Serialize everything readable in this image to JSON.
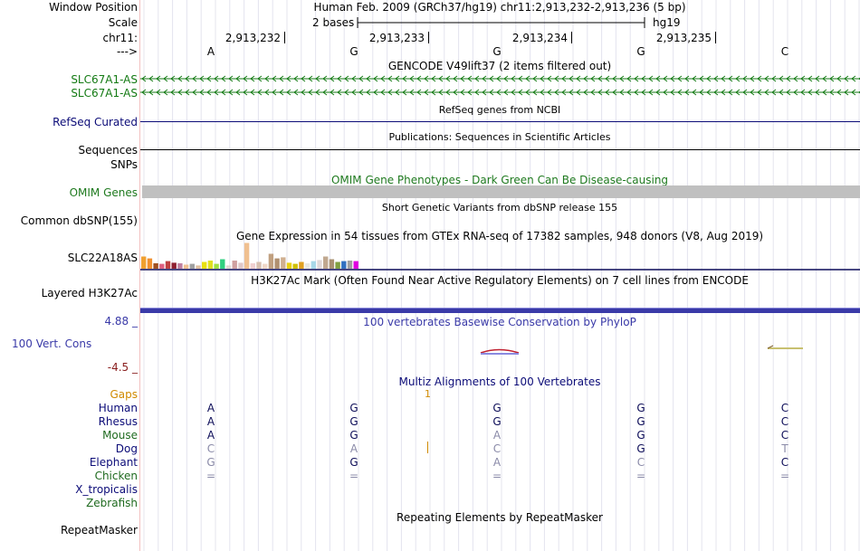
{
  "header": {
    "window_position_label": "Window Position",
    "window_position_text": "Human Feb. 2009 (GRCh37/hg19)   chr11:2,913,232-2,913,236 (5 bp)",
    "scale_label": "Scale",
    "scale_text": "2 bases",
    "scale_assembly": "hg19",
    "chrom_label": "chr11:",
    "strand_label": "--->",
    "positions": [
      "2,913,232",
      "2,913,233",
      "2,913,234",
      "2,913,235"
    ],
    "bases": [
      "A",
      "G",
      "G",
      "G",
      "C"
    ]
  },
  "tracks": {
    "gencode_title": "GENCODE V49lift37 (2 items filtered out)",
    "gencode_items": [
      "SLC67A1-AS",
      "SLC67A1-AS"
    ],
    "refseq_label": "RefSeq Curated",
    "refseq_title": "RefSeq genes from NCBI",
    "sequences_label": "Sequences",
    "sequences_title": "Publications: Sequences in Scientific Articles",
    "snps_label": "SNPs",
    "omim_title": "OMIM Gene Phenotypes - Dark Green Can Be Disease-causing",
    "omim_label": "OMIM Genes",
    "dbsnp_title": "Short Genetic Variants from dbSNP release 155",
    "dbsnp_label": "Common dbSNP(155)",
    "gtex_title": "Gene Expression in 54 tissues from GTEx RNA-seq of 17382 samples, 948 donors (V8, Aug 2019)",
    "gtex_label": "SLC22A18AS",
    "h3k27ac_title": "H3K27Ac Mark (Often Found Near Active Regulatory Elements) on 7 cell lines from ENCODE",
    "h3k27ac_label": "Layered H3K27Ac",
    "cons_max": "4.88 _",
    "cons_label": "100 Vert. Cons",
    "cons_min": "-4.5 _",
    "cons_title": "100 vertebrates Basewise Conservation by PhyloP",
    "multiz_title": "Multiz Alignments of 100 Vertebrates",
    "gaps_label": "Gaps",
    "gaps_value": "1",
    "species": [
      {
        "name": "Human",
        "bases": [
          "A",
          "G",
          "G",
          "G",
          "C"
        ]
      },
      {
        "name": "Rhesus",
        "bases": [
          "A",
          "G",
          "G",
          "G",
          "C"
        ]
      },
      {
        "name": "Mouse",
        "bases": [
          "A",
          "G",
          "A",
          "G",
          "C"
        ]
      },
      {
        "name": "Dog",
        "bases": [
          "C",
          "A",
          "C",
          "G",
          "T"
        ]
      },
      {
        "name": "Elephant",
        "bases": [
          "G",
          "G",
          "A",
          "C",
          "C"
        ]
      },
      {
        "name": "Chicken",
        "bases": [
          "=",
          "=",
          "=",
          "=",
          "="
        ]
      },
      {
        "name": "X_tropicalis",
        "bases": [
          "",
          "",
          "",
          "",
          ""
        ]
      },
      {
        "name": "Zebrafish",
        "bases": [
          "",
          "",
          "",
          "",
          ""
        ]
      }
    ],
    "repeat_title": "Repeating Elements by RepeatMasker",
    "repeat_label": "RepeatMasker"
  },
  "colors": {
    "gencode_green": "#137a13",
    "refseq_navy": "#0c0c78",
    "omim_green": "#1f7a1f",
    "omim_bar": "#c0c0c0",
    "cons_blue": "#3a3aa8",
    "cons_neg": "#8a1f1f",
    "gaps_orange": "#d08a00",
    "species_navy": "#0c0c78",
    "species_green": "#1f6a1f",
    "mismatch_grey": "#8a8aa8"
  },
  "gtex_bars": [
    {
      "c": "#f0a030",
      "v": 0.45
    },
    {
      "c": "#f09030",
      "v": 0.38
    },
    {
      "c": "#a05020",
      "v": 0.2
    },
    {
      "c": "#e06080",
      "v": 0.18
    },
    {
      "c": "#c04040",
      "v": 0.28
    },
    {
      "c": "#902030",
      "v": 0.22
    },
    {
      "c": "#c080a0",
      "v": 0.2
    },
    {
      "c": "#f0c090",
      "v": 0.15
    },
    {
      "c": "#a0a0a0",
      "v": 0.18
    },
    {
      "c": "#e0c0a0",
      "v": 0.12
    },
    {
      "c": "#e8e010",
      "v": 0.25
    },
    {
      "c": "#e0e020",
      "v": 0.3
    },
    {
      "c": "#a0e040",
      "v": 0.18
    },
    {
      "c": "#30d080",
      "v": 0.35
    },
    {
      "c": "#e0d8d0",
      "v": 0.12
    },
    {
      "c": "#d0a0a0",
      "v": 0.3
    },
    {
      "c": "#e0c8c8",
      "v": 0.22
    },
    {
      "c": "#f0c090",
      "v": 0.95
    },
    {
      "c": "#f0d0d0",
      "v": 0.2
    },
    {
      "c": "#d8c0b0",
      "v": 0.25
    },
    {
      "c": "#f0d8c8",
      "v": 0.18
    },
    {
      "c": "#c0a080",
      "v": 0.55
    },
    {
      "c": "#b09070",
      "v": 0.38
    },
    {
      "c": "#d0b090",
      "v": 0.42
    },
    {
      "c": "#e8d010",
      "v": 0.22
    },
    {
      "c": "#d0c000",
      "v": 0.18
    },
    {
      "c": "#e0a020",
      "v": 0.25
    },
    {
      "c": "#e8e8e0",
      "v": 0.2
    },
    {
      "c": "#a8d8e8",
      "v": 0.28
    },
    {
      "c": "#e0d8d8",
      "v": 0.32
    },
    {
      "c": "#c0a890",
      "v": 0.45
    },
    {
      "c": "#a89070",
      "v": 0.35
    },
    {
      "c": "#80a040",
      "v": 0.25
    },
    {
      "c": "#3070c0",
      "v": 0.28
    },
    {
      "c": "#a0a0a0",
      "v": 0.3
    },
    {
      "c": "#e000e0",
      "v": 0.28
    }
  ]
}
